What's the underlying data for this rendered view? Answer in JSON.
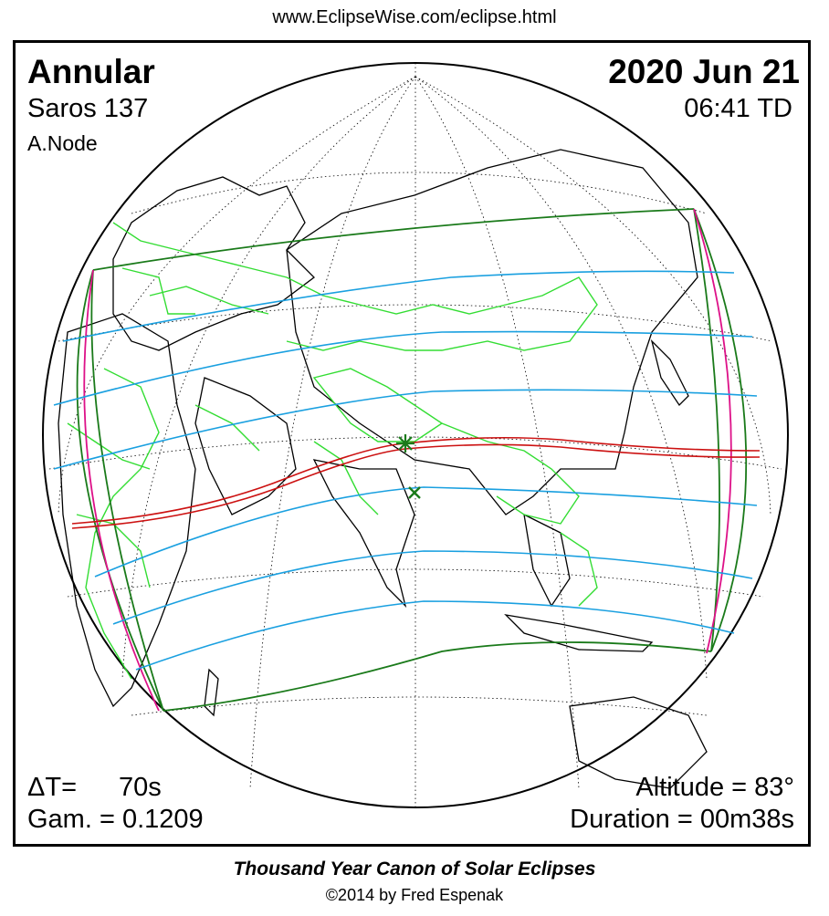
{
  "header": {
    "url": "www.EclipseWise.com/eclipse.html"
  },
  "eclipse": {
    "type": "Annular",
    "date": "2020 Jun 21",
    "saros": "Saros 137",
    "time": "06:41 TD",
    "node": "A.Node",
    "delta_t_label": "ΔT=",
    "delta_t_value": "70s",
    "gamma": "Gam. = 0.1209",
    "altitude": "Altitude = 83°",
    "duration": "Duration = 00m38s"
  },
  "footer": {
    "title": "Thousand Year Canon of Solar Eclipses",
    "copyright": "©2014 by Fred Espenak"
  },
  "colors": {
    "frame": "#000000",
    "graticule": "#000000",
    "coastline": "#000000",
    "borders": "#33dd33",
    "penumbra_limits": "#1a7a1a",
    "magnitude_curves": "#1aa0e0",
    "central_path": "#cc1111",
    "sunrise_sunset": "#dd1188",
    "greatest_eclipse_marker": "#1a7a1a"
  },
  "markers": [
    {
      "name": "greatest-eclipse",
      "symbol": "asterisk"
    },
    {
      "name": "sub-solar-point",
      "symbol": "x"
    }
  ]
}
